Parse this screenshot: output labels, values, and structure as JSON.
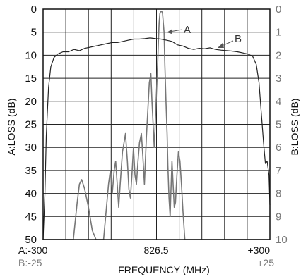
{
  "chart_data": {
    "type": "line",
    "xlabel": "FREQUENCY (MHz)",
    "ylabel_left": "A:LOSS (dB)",
    "ylabel_right": "B:LOSS (dB)",
    "x_tick_labels": {
      "left_a": "A:-300",
      "left_b": "B:-25",
      "center": "826.5",
      "right_a": "+300",
      "right_b": "+25"
    },
    "x_units_note": "offset from 826.5 MHz; trace A span ±300, trace B span ±25",
    "x_range_a": [
      -300,
      300
    ],
    "x_range_b": [
      -25,
      25
    ],
    "y_left_ticks": [
      "0",
      "5",
      "10",
      "15",
      "20",
      "25",
      "30",
      "35",
      "40",
      "45",
      "50"
    ],
    "y_right_ticks": [
      "0",
      "1",
      "2",
      "3",
      "4",
      "5",
      "6",
      "7",
      "8",
      "9",
      "10"
    ],
    "ylim_left": [
      0,
      50
    ],
    "ylim_right": [
      0,
      10
    ],
    "y_inverted": true,
    "grid": true,
    "series": [
      {
        "name": "A",
        "axis": "left",
        "color": "#777777",
        "points": [
          [
            -300,
            50
          ],
          [
            -220,
            50
          ],
          [
            -210,
            42
          ],
          [
            -204,
            38
          ],
          [
            -198,
            37
          ],
          [
            -190,
            39
          ],
          [
            -180,
            43
          ],
          [
            -170,
            48
          ],
          [
            -160,
            50
          ],
          [
            -140,
            50
          ],
          [
            -127,
            38
          ],
          [
            -122,
            35
          ],
          [
            -117,
            40
          ],
          [
            -112,
            35
          ],
          [
            -108,
            33
          ],
          [
            -104,
            38
          ],
          [
            -100,
            43
          ],
          [
            -96,
            38
          ],
          [
            -90,
            31
          ],
          [
            -86,
            29
          ],
          [
            -82,
            27
          ],
          [
            -77,
            33
          ],
          [
            -73,
            39
          ],
          [
            -69,
            41
          ],
          [
            -65,
            36
          ],
          [
            -61,
            30
          ],
          [
            -57,
            36
          ],
          [
            -53,
            38
          ],
          [
            -49,
            33
          ],
          [
            -45,
            29
          ],
          [
            -40,
            27
          ],
          [
            -36,
            32
          ],
          [
            -32,
            38
          ],
          [
            -27,
            28
          ],
          [
            -23,
            22
          ],
          [
            -19,
            16
          ],
          [
            -15,
            14
          ],
          [
            -12,
            20
          ],
          [
            -9,
            25
          ],
          [
            -6,
            30
          ],
          [
            -3,
            24
          ],
          [
            0,
            18
          ],
          [
            3,
            12
          ],
          [
            5,
            7
          ],
          [
            7,
            3
          ],
          [
            9,
            1
          ],
          [
            11,
            0.5
          ],
          [
            14,
            0.5
          ],
          [
            16,
            1
          ],
          [
            18,
            3
          ],
          [
            20,
            5
          ],
          [
            22,
            12
          ],
          [
            25,
            20
          ],
          [
            28,
            27
          ],
          [
            30,
            34
          ],
          [
            33,
            41
          ],
          [
            36,
            45
          ],
          [
            38,
            40
          ],
          [
            41,
            33
          ],
          [
            44,
            38
          ],
          [
            47,
            43
          ],
          [
            50,
            42
          ],
          [
            54,
            36
          ],
          [
            58,
            31
          ],
          [
            62,
            33
          ],
          [
            66,
            38
          ],
          [
            70,
            44
          ],
          [
            75,
            50
          ],
          [
            300,
            50
          ]
        ]
      },
      {
        "name": "B",
        "axis": "right",
        "color": "#222222",
        "points": [
          [
            -25,
            10
          ],
          [
            -24.6,
            8
          ],
          [
            -24.3,
            5.5
          ],
          [
            -23.8,
            3.4
          ],
          [
            -23.3,
            2.5
          ],
          [
            -22.6,
            2.1
          ],
          [
            -21.8,
            1.95
          ],
          [
            -20.6,
            1.85
          ],
          [
            -19.4,
            1.85
          ],
          [
            -18.2,
            1.75
          ],
          [
            -17.0,
            1.8
          ],
          [
            -15.8,
            1.7
          ],
          [
            -14.6,
            1.65
          ],
          [
            -13.4,
            1.6
          ],
          [
            -12.2,
            1.55
          ],
          [
            -11.0,
            1.5
          ],
          [
            -9.8,
            1.45
          ],
          [
            -8.6,
            1.45
          ],
          [
            -7.4,
            1.4
          ],
          [
            -6.2,
            1.35
          ],
          [
            -5.0,
            1.3
          ],
          [
            -3.8,
            1.3
          ],
          [
            -2.6,
            1.28
          ],
          [
            -1.4,
            1.25
          ],
          [
            -0.2,
            1.28
          ],
          [
            1.0,
            1.3
          ],
          [
            2.2,
            1.35
          ],
          [
            3.4,
            1.4
          ],
          [
            4.6,
            1.55
          ],
          [
            5.8,
            1.6
          ],
          [
            7.0,
            1.7
          ],
          [
            8.2,
            1.75
          ],
          [
            9.4,
            1.7
          ],
          [
            10.6,
            1.72
          ],
          [
            11.8,
            1.68
          ],
          [
            13.0,
            1.75
          ],
          [
            14.2,
            1.78
          ],
          [
            15.4,
            1.8
          ],
          [
            16.6,
            1.82
          ],
          [
            17.8,
            1.85
          ],
          [
            19.0,
            1.9
          ],
          [
            20.2,
            1.95
          ],
          [
            21.2,
            2.05
          ],
          [
            22.0,
            2.4
          ],
          [
            22.6,
            3.2
          ],
          [
            23.1,
            4.5
          ],
          [
            23.6,
            5.8
          ],
          [
            24.0,
            6.7
          ],
          [
            24.4,
            6.6
          ],
          [
            24.8,
            7.2
          ],
          [
            25,
            8.5
          ]
        ]
      }
    ],
    "callouts": [
      {
        "label": "A"
      },
      {
        "label": "B"
      }
    ]
  }
}
